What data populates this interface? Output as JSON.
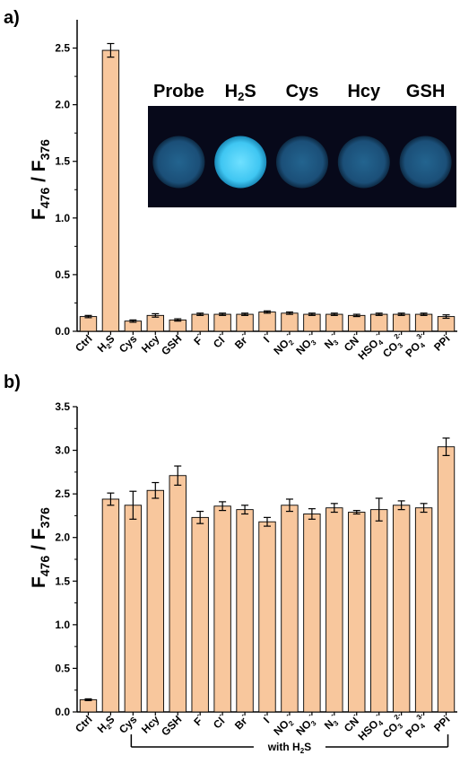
{
  "colors": {
    "bar_fill": "#f8c79d",
    "bar_stroke": "#000000",
    "inset_bg": "#07091a",
    "vial_dark": "#1b4f78",
    "vial_bright": "#3fc6f2"
  },
  "chart_data": [
    {
      "panel": "a)",
      "type": "bar",
      "ylabel_main": "F",
      "ylabel_sub1": "476",
      "ylabel_mid": " / F",
      "ylabel_sub2": "376",
      "ylim": [
        0,
        2.75
      ],
      "yticks": [
        "0.0",
        "0.5",
        "1.0",
        "1.5",
        "2.0",
        "2.5"
      ],
      "categories": [
        {
          "base": "Ctrl",
          "sub": "",
          "sup": ""
        },
        {
          "base": "H",
          "sub": "2",
          "sup": "",
          "tail": "S"
        },
        {
          "base": "Cys",
          "sub": "",
          "sup": ""
        },
        {
          "base": "Hcy",
          "sub": "",
          "sup": ""
        },
        {
          "base": "GSH",
          "sub": "",
          "sup": ""
        },
        {
          "base": "F",
          "sub": "",
          "sup": "-"
        },
        {
          "base": "Cl",
          "sub": "",
          "sup": "-"
        },
        {
          "base": "Br",
          "sub": "",
          "sup": "-"
        },
        {
          "base": "I",
          "sub": "",
          "sup": "-"
        },
        {
          "base": "NO",
          "sub": "2",
          "sup": "-"
        },
        {
          "base": "NO",
          "sub": "3",
          "sup": "-"
        },
        {
          "base": "N",
          "sub": "3",
          "sup": "-"
        },
        {
          "base": "CN",
          "sub": "",
          "sup": "-"
        },
        {
          "base": "HSO",
          "sub": "4",
          "sup": "-"
        },
        {
          "base": "CO",
          "sub": "3",
          "sup": "2-"
        },
        {
          "base": "PO",
          "sub": "4",
          "sup": "3-"
        },
        {
          "base": "PPi",
          "sub": "",
          "sup": ""
        }
      ],
      "values": [
        0.13,
        2.48,
        0.09,
        0.14,
        0.1,
        0.15,
        0.15,
        0.15,
        0.17,
        0.16,
        0.15,
        0.15,
        0.14,
        0.15,
        0.15,
        0.15,
        0.13
      ],
      "errors": [
        0.01,
        0.06,
        0.01,
        0.015,
        0.01,
        0.01,
        0.01,
        0.01,
        0.01,
        0.01,
        0.01,
        0.01,
        0.01,
        0.01,
        0.01,
        0.01,
        0.015
      ],
      "inset": {
        "labels": [
          {
            "base": "Probe",
            "sub": "",
            "tail": ""
          },
          {
            "base": "H",
            "sub": "2",
            "tail": "S"
          },
          {
            "base": "Cys",
            "sub": "",
            "tail": ""
          },
          {
            "base": "Hcy",
            "sub": "",
            "tail": ""
          },
          {
            "base": "GSH",
            "sub": "",
            "tail": ""
          }
        ],
        "brightness": [
          "dark",
          "bright",
          "dark",
          "dark",
          "dark"
        ]
      }
    },
    {
      "panel": "b)",
      "type": "bar",
      "ylabel_main": "F",
      "ylabel_sub1": "476",
      "ylabel_mid": " / F",
      "ylabel_sub2": "376",
      "ylim": [
        0,
        3.5
      ],
      "yticks": [
        "0.0",
        "0.5",
        "1.0",
        "1.5",
        "2.0",
        "2.5",
        "3.0",
        "3.5"
      ],
      "categories": [
        {
          "base": "Ctrl",
          "sub": "",
          "sup": ""
        },
        {
          "base": "H",
          "sub": "2",
          "sup": "",
          "tail": "S"
        },
        {
          "base": "Cys",
          "sub": "",
          "sup": ""
        },
        {
          "base": "Hcy",
          "sub": "",
          "sup": ""
        },
        {
          "base": "GSH",
          "sub": "",
          "sup": ""
        },
        {
          "base": "F",
          "sub": "",
          "sup": "-"
        },
        {
          "base": "Cl",
          "sub": "",
          "sup": "-"
        },
        {
          "base": "Br",
          "sub": "",
          "sup": "-"
        },
        {
          "base": "I",
          "sub": "",
          "sup": "-"
        },
        {
          "base": "NO",
          "sub": "2",
          "sup": "-"
        },
        {
          "base": "NO",
          "sub": "3",
          "sup": "-"
        },
        {
          "base": "N",
          "sub": "3",
          "sup": "-"
        },
        {
          "base": "CN",
          "sub": "",
          "sup": "-"
        },
        {
          "base": "HSO",
          "sub": "4",
          "sup": "-"
        },
        {
          "base": "CO",
          "sub": "3",
          "sup": "2-"
        },
        {
          "base": "PO",
          "sub": "4",
          "sup": "3-"
        },
        {
          "base": "PPi",
          "sub": "",
          "sup": ""
        }
      ],
      "values": [
        0.14,
        2.44,
        2.37,
        2.54,
        2.71,
        2.23,
        2.36,
        2.32,
        2.18,
        2.37,
        2.27,
        2.34,
        2.29,
        2.32,
        2.37,
        2.34,
        3.04
      ],
      "errors": [
        0.01,
        0.07,
        0.16,
        0.09,
        0.11,
        0.07,
        0.05,
        0.05,
        0.05,
        0.07,
        0.06,
        0.05,
        0.02,
        0.13,
        0.05,
        0.05,
        0.1
      ],
      "bracket": {
        "from_index": 2,
        "to_index": 16,
        "label_pre": "with H",
        "label_sub": "2",
        "label_post": "S"
      }
    }
  ]
}
